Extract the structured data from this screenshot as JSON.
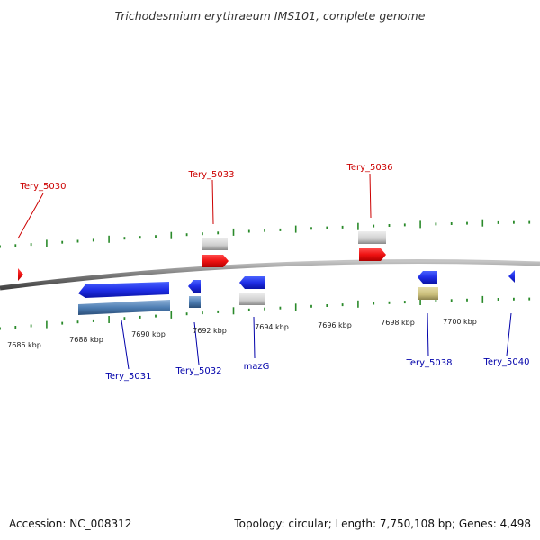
{
  "title": "Trichodesmium erythraeum IMS101, complete genome",
  "footer": {
    "accession": "Accession: NC_008312",
    "summary": "Topology: circular; Length: 7,750,108 bp; Genes: 4,498"
  },
  "colors": {
    "top_label": "#cc0000",
    "bottom_label": "#0000aa",
    "tick": "#2a8a2a",
    "backbone": "#808080"
  },
  "scale_labels": [
    "7686 kbp",
    "7688 kbp",
    "7690 kbp",
    "7692 kbp",
    "7694 kbp",
    "7696 kbp",
    "7698 kbp",
    "7700 kbp"
  ],
  "gene_labels": {
    "top": [
      "Tery_5030",
      "Tery_5033",
      "Tery_5036"
    ],
    "bottom": [
      "Tery_5031",
      "Tery_5032",
      "mazG",
      "Tery_5038",
      "Tery_5040"
    ]
  }
}
